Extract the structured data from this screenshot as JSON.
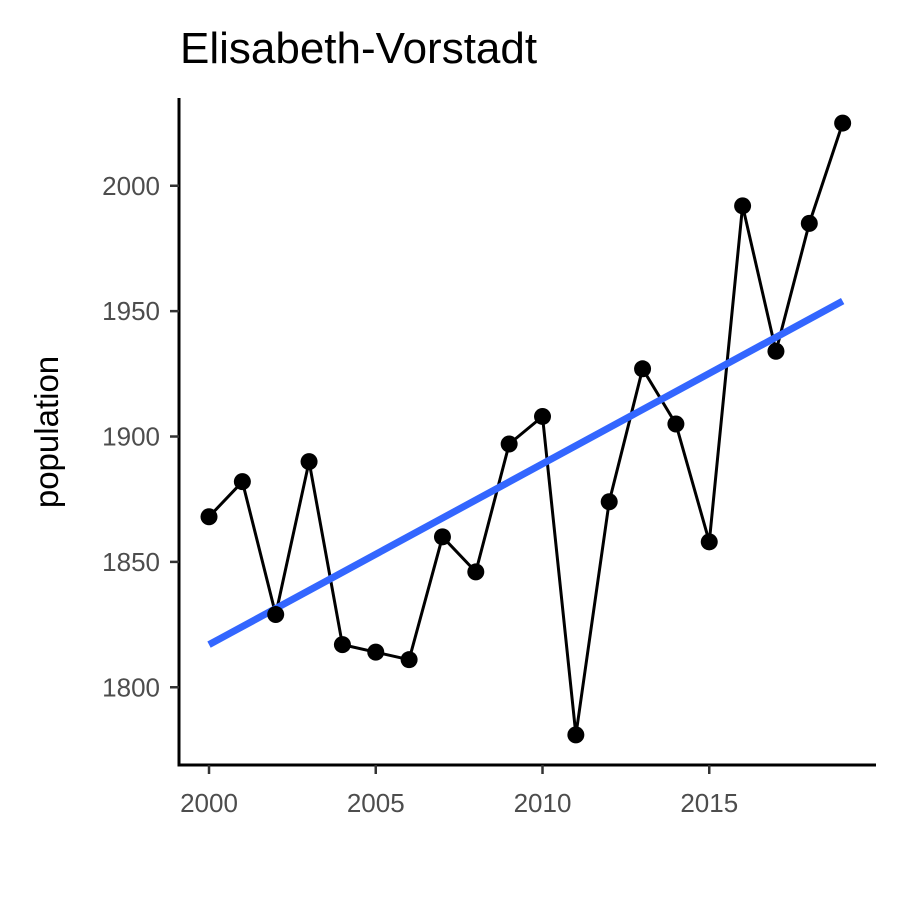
{
  "chart_data": {
    "type": "line",
    "title": "Elisabeth-Vorstadt",
    "xlabel": "",
    "ylabel": "population",
    "x": [
      2000,
      2001,
      2002,
      2003,
      2004,
      2005,
      2006,
      2007,
      2008,
      2009,
      2010,
      2011,
      2012,
      2013,
      2014,
      2015,
      2016,
      2017,
      2018,
      2019
    ],
    "series": [
      {
        "values": [
          1868,
          1882,
          1829,
          1890,
          1817,
          1814,
          1811,
          1860,
          1846,
          1897,
          1908,
          1781,
          1874,
          1927,
          1905,
          1858,
          1992,
          1934,
          1985,
          2025
        ],
        "color": "#000000",
        "markers": true
      }
    ],
    "trend_line": {
      "method": "linear regression",
      "color": "#3366ff",
      "x": [
        2000,
        2019
      ],
      "y": [
        1817,
        1954
      ]
    },
    "xlim": [
      1999.1,
      2020
    ],
    "ylim": [
      1769,
      2035
    ],
    "x_ticks": [
      2000,
      2005,
      2010,
      2015
    ],
    "y_ticks": [
      1800,
      1850,
      1900,
      1950,
      2000
    ],
    "grid": false,
    "legend": "none"
  }
}
